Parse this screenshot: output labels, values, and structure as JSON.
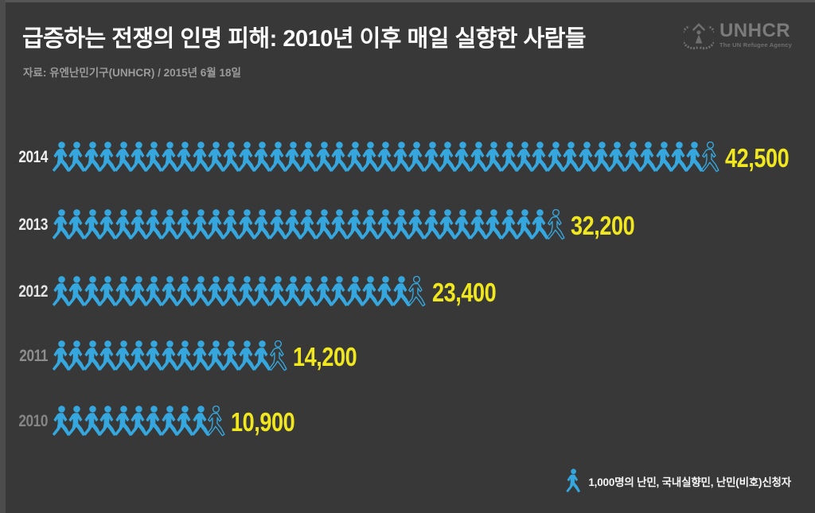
{
  "header": {
    "title": "급증하는 전쟁의 인명 피해: 2010년 이후 매일 실향한 사람들",
    "source": "자료: 유엔난민기구(UNHCR) / 2015년 6월 18일"
  },
  "logo": {
    "name": "UNHCR",
    "tagline": "The UN Refugee Agency"
  },
  "icons": {
    "person": "walking-person-icon",
    "emblem": "unhcr-wreath-emblem-icon"
  },
  "chart_data": {
    "type": "pictogram",
    "title": "급증하는 전쟁의 인명 피해: 2010년 이후 매일 실향한 사람들",
    "subtitle": "자료: 유엔난민기구(UNHCR) / 2015년 6월 18일",
    "unit_per_icon": 1000,
    "categories": [
      "2014",
      "2013",
      "2012",
      "2011",
      "2010"
    ],
    "values": [
      42500,
      32200,
      23400,
      14200,
      10900
    ],
    "value_labels": [
      "42,500",
      "32,200",
      "23,400",
      "14,200",
      "10,900"
    ],
    "full_icons": [
      42,
      32,
      23,
      14,
      10
    ],
    "partial_icon_outline": true,
    "year_label_colors": [
      "#f2f2f2",
      "#e9e9e9",
      "#e2e2e2",
      "#8d8d8d",
      "#858585"
    ],
    "legend_label": "1,000명의 난민, 국내실향민, 난민(비호)신청자",
    "colors": {
      "background": "#383838",
      "icon_blue": "#35a7de",
      "value_yellow": "#f0e71f",
      "title_white": "#fdfdfd",
      "source_gray": "#9b9b9b",
      "logo_gray": "#7b7b7b"
    },
    "legend_position": "bottom-right",
    "grid": false
  }
}
